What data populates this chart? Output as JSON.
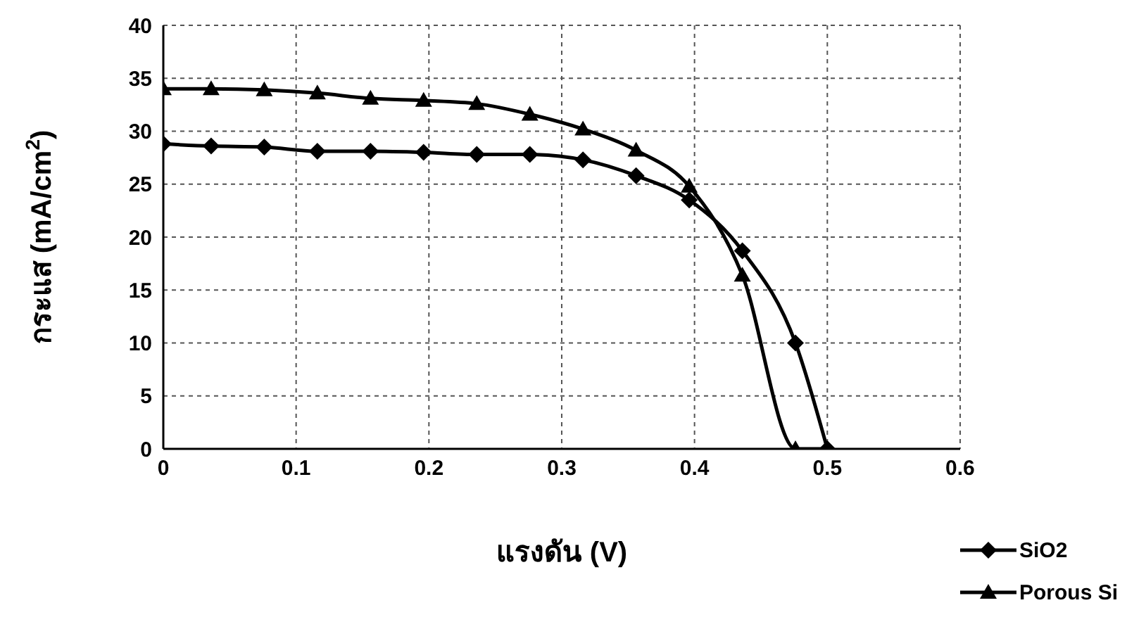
{
  "chart_data": {
    "type": "line",
    "xlabel": "แรงดัน (V)",
    "ylabel": "กระแส (mA/cm$^{2}$)",
    "xlim": [
      0,
      0.6
    ],
    "xticks": [
      0,
      0.1,
      0.2,
      0.3,
      0.4,
      0.5,
      0.6
    ],
    "ylim": [
      0,
      40
    ],
    "yticks": [
      0,
      5,
      10,
      15,
      20,
      25,
      30,
      35,
      40
    ],
    "grid": true,
    "legend": "bottom right",
    "series": [
      {
        "name": "SiO2",
        "color": "#000000",
        "marker": "diamond",
        "x": [
          0,
          0.036,
          0.076,
          0.116,
          0.156,
          0.196,
          0.236,
          0.276,
          0.316,
          0.356,
          0.396,
          0.436,
          0.476,
          0.5
        ],
        "values": [
          28.8,
          28.6,
          28.5,
          28.1,
          28.1,
          28.0,
          27.8,
          27.8,
          27.3,
          25.8,
          23.5,
          18.7,
          10,
          0
        ]
      },
      {
        "name": "Porous Si",
        "color": "#000000",
        "marker": "triangle",
        "x": [
          0,
          0.036,
          0.076,
          0.116,
          0.156,
          0.196,
          0.236,
          0.276,
          0.316,
          0.356,
          0.396,
          0.436,
          0.476,
          0.5
        ],
        "values": [
          34,
          34,
          33.9,
          33.6,
          33.1,
          32.9,
          32.6,
          31.6,
          30.2,
          28.2,
          24.8,
          16.4,
          0,
          0
        ]
      }
    ]
  }
}
